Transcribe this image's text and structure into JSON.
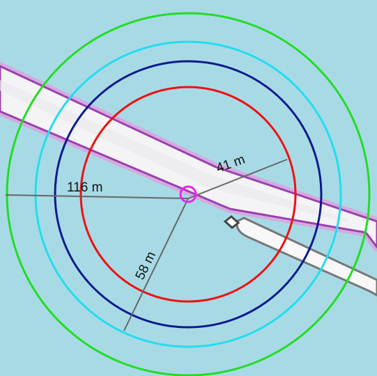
{
  "map": {
    "water_color": "#a8dae6",
    "land_color": "#f4f4f6",
    "shoreline_color": "#9c3fb0",
    "measure_line_color": "#666666",
    "center_marker": {
      "icon": "position-circle-icon",
      "color": "#ee22ee"
    },
    "range_rings": [
      {
        "name": "red-ring",
        "color": "#ee1111"
      },
      {
        "name": "navy-ring",
        "color": "#0a1a8c"
      },
      {
        "name": "cyan-ring",
        "color": "#22ddee"
      },
      {
        "name": "green-ring",
        "color": "#22dd22"
      }
    ],
    "distance_labels": {
      "west": "116 m",
      "northeast": "41 m",
      "south": "58 m"
    }
  }
}
